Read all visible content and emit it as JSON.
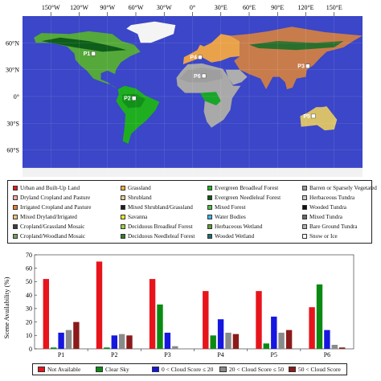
{
  "map": {
    "lon_labels": [
      "150°W",
      "120°W",
      "90°W",
      "60°W",
      "30°W",
      "0°",
      "30°E",
      "60°E",
      "90°E",
      "120°E",
      "150°E"
    ],
    "lat_labels": [
      "60°N",
      "30°N",
      "0°",
      "30°S",
      "60°S"
    ],
    "points": [
      {
        "label": "P1",
        "lon": -105,
        "lat": 48
      },
      {
        "label": "P2",
        "lon": -62,
        "lat": -2
      },
      {
        "label": "P3",
        "lon": 122,
        "lat": 34
      },
      {
        "label": "P4",
        "lon": 8,
        "lat": 44
      },
      {
        "label": "P5",
        "lon": 128,
        "lat": -22
      },
      {
        "label": "P6",
        "lon": 12,
        "lat": 23
      }
    ],
    "legend": [
      {
        "label": "Urban and Built-Up Land",
        "color": "#e31a1c"
      },
      {
        "label": "Dryland Cropland and Pasture",
        "color": "#f4a6a6"
      },
      {
        "label": "Irrigated Cropland and Pasture",
        "color": "#ed7b2c"
      },
      {
        "label": "Mixed Dryland/Irrigated",
        "color": "#f5c27a"
      },
      {
        "label": "Cropland/Grassland Mosaic",
        "color": "#3d3d3d"
      },
      {
        "label": "Cropland/Woodland Mosaic",
        "color": "#6fa55b"
      },
      {
        "label": "Grassland",
        "color": "#f0b030"
      },
      {
        "label": "Shrubland",
        "color": "#e8c98a"
      },
      {
        "label": "Mixed Shrubland/Grassland",
        "color": "#1f1f1f"
      },
      {
        "label": "Savanna",
        "color": "#f2e61c"
      },
      {
        "label": "Deciduous Broadleaf Forest",
        "color": "#9ad03a"
      },
      {
        "label": "Deciduous Needleleaf Forest",
        "color": "#2f7d32"
      },
      {
        "label": "Evergreen Broadleaf Forest",
        "color": "#22b422"
      },
      {
        "label": "Evergreen Needleleaf Forest",
        "color": "#0d5a14"
      },
      {
        "label": "Mixed Forest",
        "color": "#48c148"
      },
      {
        "label": "Water Bodies",
        "color": "#3db4e8"
      },
      {
        "label": "Herbaceous Wetland",
        "color": "#5f9f2f"
      },
      {
        "label": "Wooded Wetland",
        "color": "#1b6f6f"
      },
      {
        "label": "Barren or Sparsely Vegetated",
        "color": "#9b9b9b"
      },
      {
        "label": "Herbaceous Tundra",
        "color": "#c8c8c8"
      },
      {
        "label": "Wooded Tundra",
        "color": "#101010"
      },
      {
        "label": "Mixed Tundra",
        "color": "#6b6b6b"
      },
      {
        "label": "Bare Ground Tundra",
        "color": "#b0b0b0"
      },
      {
        "label": "Snow or Ice",
        "color": "#ffffff"
      }
    ]
  },
  "chart_data": {
    "type": "bar",
    "categories": [
      "P1",
      "P2",
      "P3",
      "P4",
      "P5",
      "P6"
    ],
    "ylabel": "Scene Availability (%)",
    "xlabel": "",
    "title": "",
    "ylim": [
      0,
      70
    ],
    "yticks": [
      0,
      10,
      20,
      30,
      40,
      50,
      60,
      70
    ],
    "legend_position": "bottom",
    "series": [
      {
        "name": "Not Available",
        "color": "#e8141c",
        "values": [
          52,
          65,
          52,
          43,
          43,
          31
        ]
      },
      {
        "name": "Clear Sky",
        "color": "#0b8a13",
        "values": [
          1,
          1,
          33,
          10,
          4,
          48
        ]
      },
      {
        "name": "0 < Cloud Score ≤ 20",
        "color": "#1616e0",
        "values": [
          12,
          10,
          12,
          22,
          24,
          14
        ]
      },
      {
        "name": "20 < Cloud Score ≤ 50",
        "color": "#8a8a8a",
        "values": [
          14,
          11,
          2,
          12,
          12,
          3
        ]
      },
      {
        "name": "50 < Cloud Score",
        "color": "#8b1a1a",
        "values": [
          20,
          10,
          0,
          11,
          14,
          1
        ]
      }
    ]
  }
}
